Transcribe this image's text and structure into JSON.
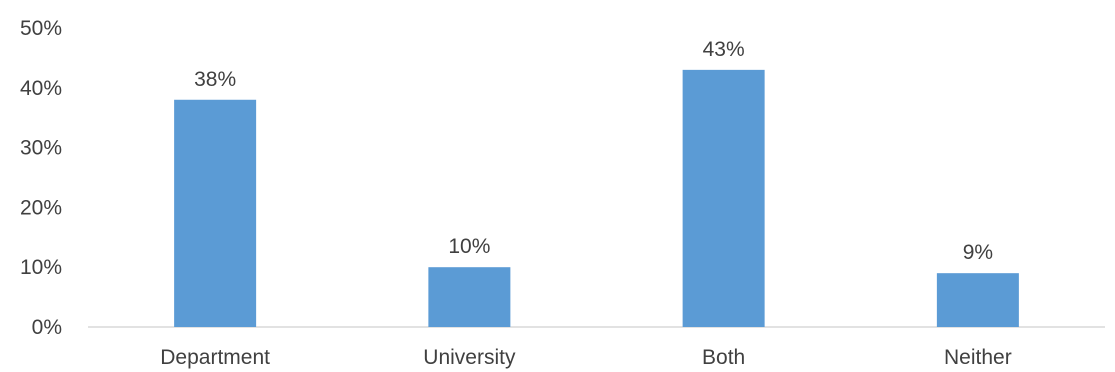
{
  "chart_data": {
    "type": "bar",
    "categories": [
      "Department",
      "University",
      "Both",
      "Neither"
    ],
    "values": [
      38,
      10,
      43,
      9
    ],
    "data_labels": [
      "38%",
      "10%",
      "43%",
      "9%"
    ],
    "y_ticks": [
      0,
      10,
      20,
      30,
      40,
      50
    ],
    "y_tick_labels": [
      "0%",
      "10%",
      "20%",
      "30%",
      "40%",
      "50%"
    ],
    "ylim": [
      0,
      50
    ],
    "grid": false,
    "legend": "none",
    "colors": {
      "bar": "#5B9BD5",
      "axis": "#D9D9D9",
      "text": "#404040"
    }
  }
}
